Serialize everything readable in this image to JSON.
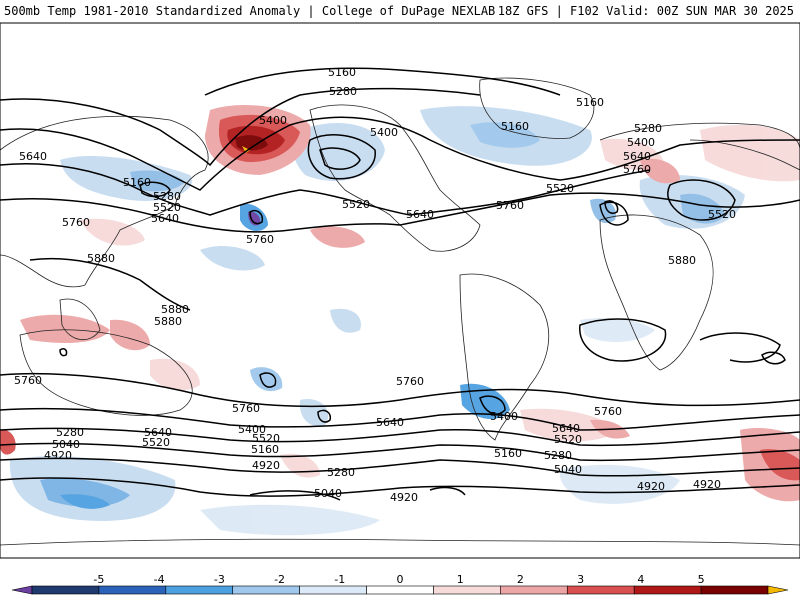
{
  "header": {
    "left_title": "500mb Temp 1981-2010 Standardized Anomaly | College of DuPage NEXLAB",
    "right_title": "18Z GFS | F102 Valid: 00Z SUN MAR 30 2025"
  },
  "map": {
    "contour_labels": [
      "5160",
      "5280",
      "5400",
      "5400",
      "5160",
      "5160",
      "5280",
      "5400",
      "5640",
      "5760",
      "5520",
      "5640",
      "5160",
      "5280",
      "5520",
      "5640",
      "5400",
      "5520",
      "5640",
      "5760",
      "5880",
      "5880",
      "5880",
      "5760",
      "5880",
      "5760",
      "5760",
      "5520",
      "5640",
      "5400",
      "5760",
      "5280",
      "5520",
      "5640",
      "5040",
      "5400",
      "5160",
      "5520",
      "4920",
      "4920",
      "5280",
      "5040",
      "4920",
      "5160",
      "5280",
      "5040",
      "4920",
      "4920",
      "5640",
      "5520",
      "5400",
      "5760",
      "5640",
      "5760"
    ],
    "colors": {
      "contour": "#000000",
      "coast": "#222222"
    }
  },
  "colorbar": {
    "tick_labels": [
      "-5",
      "-4",
      "-3",
      "-2",
      "-1",
      "0",
      "1",
      "2",
      "3",
      "4",
      "5"
    ],
    "colors": [
      "#6a3fa0",
      "#1f3a6e",
      "#2a63b8",
      "#4da0e0",
      "#9fc8ec",
      "#dce9f6",
      "#ffffff",
      "#f7dada",
      "#eda6a6",
      "#d85050",
      "#b01818",
      "#780000",
      "#f5b800"
    ]
  }
}
